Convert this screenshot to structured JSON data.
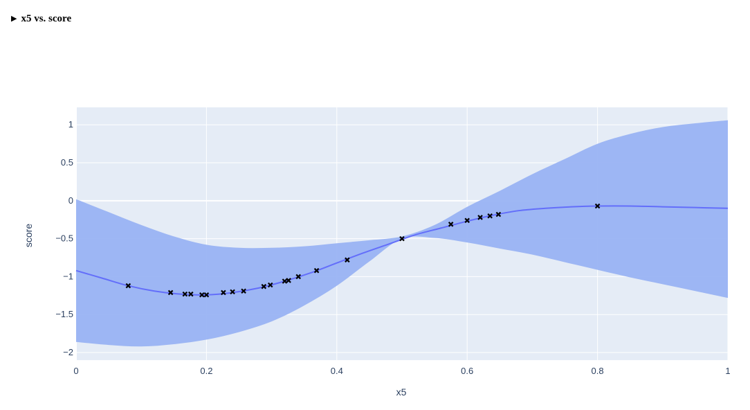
{
  "details": {
    "toggle_icon": "triangle-right-icon",
    "label": "x5 vs. score"
  },
  "chart_data": {
    "type": "line",
    "title": "",
    "xlabel": "x5",
    "ylabel": "score",
    "xlim": [
      0,
      1
    ],
    "ylim": [
      -2.1,
      1.23
    ],
    "x_ticks": [
      0,
      0.2,
      0.4,
      0.6,
      0.8,
      1
    ],
    "x_tick_labels": [
      "0",
      "0.2",
      "0.4",
      "0.6",
      "0.8",
      "1"
    ],
    "y_ticks": [
      1,
      0.5,
      0,
      -0.5,
      -1,
      -1.5,
      -2
    ],
    "y_tick_labels": [
      "1",
      "0.5",
      "0",
      "−0.5",
      "−1",
      "−1.5",
      "−2"
    ],
    "grid": true,
    "colors": {
      "plot_bg": "#e5ecf6",
      "grid": "#ffffff",
      "band": "#99b3f3",
      "mean_line": "#636efa",
      "points": "#000000",
      "tick_text": "#2a3f5f"
    },
    "series": [
      {
        "kind": "band",
        "x": [
          0,
          0.05,
          0.1,
          0.15,
          0.2,
          0.25,
          0.3,
          0.35,
          0.4,
          0.45,
          0.5,
          0.55,
          0.6,
          0.65,
          0.7,
          0.75,
          0.8,
          0.85,
          0.9,
          0.95,
          1
        ],
        "upper": [
          0.02,
          -0.15,
          -0.32,
          -0.47,
          -0.58,
          -0.62,
          -0.62,
          -0.6,
          -0.56,
          -0.52,
          -0.47,
          -0.32,
          -0.08,
          0.13,
          0.35,
          0.55,
          0.75,
          0.88,
          0.97,
          1.02,
          1.06
        ],
        "lower": [
          -1.86,
          -1.9,
          -1.92,
          -1.89,
          -1.83,
          -1.73,
          -1.59,
          -1.38,
          -1.12,
          -0.8,
          -0.5,
          -0.49,
          -0.55,
          -0.63,
          -0.71,
          -0.81,
          -0.91,
          -1.01,
          -1.1,
          -1.19,
          -1.28
        ]
      },
      {
        "kind": "mean",
        "x": [
          0,
          0.04,
          0.08,
          0.12,
          0.16,
          0.2,
          0.24,
          0.28,
          0.32,
          0.36,
          0.4,
          0.44,
          0.48,
          0.52,
          0.56,
          0.6,
          0.64,
          0.68,
          0.72,
          0.76,
          0.8,
          0.85,
          0.9,
          0.95,
          1
        ],
        "y": [
          -0.92,
          -1.02,
          -1.12,
          -1.19,
          -1.23,
          -1.24,
          -1.21,
          -1.15,
          -1.06,
          -0.95,
          -0.82,
          -0.69,
          -0.57,
          -0.45,
          -0.36,
          -0.27,
          -0.19,
          -0.13,
          -0.1,
          -0.08,
          -0.07,
          -0.07,
          -0.08,
          -0.09,
          -0.1
        ]
      },
      {
        "kind": "points",
        "x": [
          0.08,
          0.145,
          0.167,
          0.176,
          0.193,
          0.2,
          0.226,
          0.24,
          0.257,
          0.288,
          0.298,
          0.32,
          0.326,
          0.341,
          0.369,
          0.416,
          0.5,
          0.575,
          0.6,
          0.62,
          0.635,
          0.648,
          0.8
        ],
        "y": [
          -1.12,
          -1.21,
          -1.23,
          -1.23,
          -1.24,
          -1.24,
          -1.21,
          -1.2,
          -1.19,
          -1.13,
          -1.11,
          -1.06,
          -1.05,
          -1.0,
          -0.92,
          -0.78,
          -0.5,
          -0.31,
          -0.26,
          -0.22,
          -0.2,
          -0.18,
          -0.07
        ]
      }
    ]
  }
}
